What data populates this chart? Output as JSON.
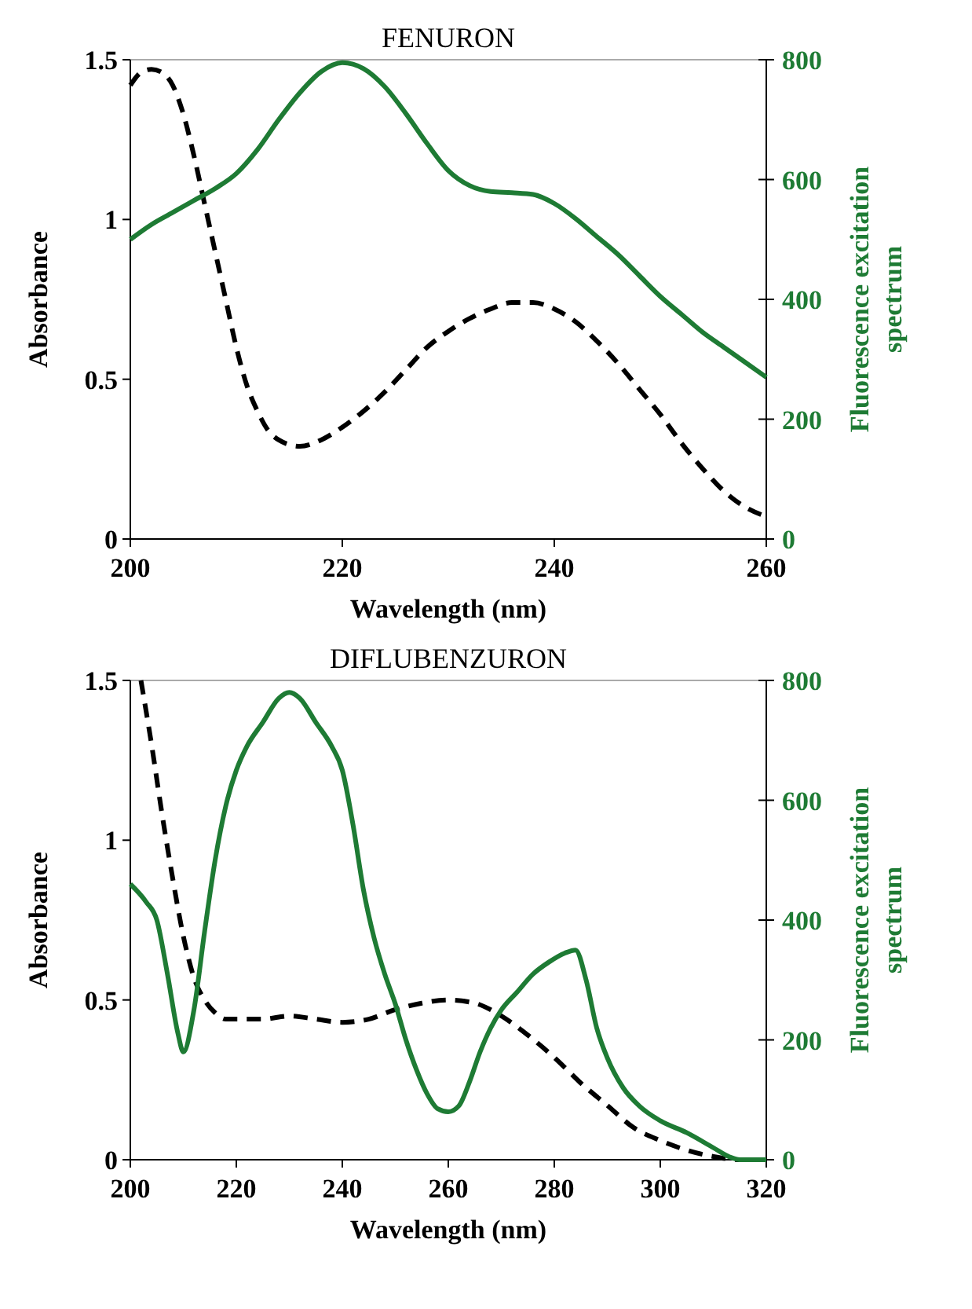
{
  "chart_data": [
    {
      "type": "line",
      "title": "FENURON",
      "xlabel": "Wavelength (nm)",
      "ylabel": "Absorbance",
      "y2label": "Fluorescence excitation\nspectrum",
      "xlim": [
        200,
        260
      ],
      "xticks": [
        200,
        220,
        240,
        260
      ],
      "ylim": [
        0,
        1.5
      ],
      "yticks": [
        0,
        0.5,
        1,
        1.5
      ],
      "y2lim": [
        0,
        800
      ],
      "y2ticks": [
        0,
        200,
        400,
        600,
        800
      ],
      "series": [
        {
          "color": "#000000",
          "line_style": "dashed",
          "x": [
            200,
            201,
            202,
            203,
            204,
            205,
            206,
            207,
            208,
            209,
            210,
            211,
            212,
            213,
            214,
            216,
            218,
            220,
            222,
            224,
            226,
            228,
            230,
            232,
            234,
            236,
            238,
            240,
            242,
            244,
            246,
            248,
            250,
            252,
            254,
            256,
            258,
            260
          ],
          "values": [
            1.42,
            1.46,
            1.47,
            1.46,
            1.42,
            1.33,
            1.2,
            1.05,
            0.9,
            0.75,
            0.6,
            0.48,
            0.4,
            0.34,
            0.31,
            0.29,
            0.31,
            0.35,
            0.4,
            0.46,
            0.53,
            0.6,
            0.65,
            0.69,
            0.72,
            0.74,
            0.74,
            0.72,
            0.68,
            0.62,
            0.55,
            0.47,
            0.39,
            0.3,
            0.22,
            0.15,
            0.1,
            0.07
          ]
        },
        {
          "color": "#1e7b34",
          "line_style": "solid",
          "axis": "y2",
          "x": [
            200,
            202,
            204,
            206,
            208,
            210,
            212,
            214,
            216,
            218,
            220,
            222,
            224,
            226,
            228,
            230,
            232,
            234,
            236,
            238,
            240,
            242,
            244,
            246,
            248,
            250,
            252,
            254,
            256,
            258,
            260
          ],
          "values": [
            500,
            525,
            545,
            565,
            585,
            610,
            650,
            700,
            745,
            780,
            795,
            785,
            755,
            710,
            660,
            615,
            590,
            580,
            578,
            575,
            560,
            535,
            505,
            475,
            440,
            405,
            375,
            345,
            320,
            295,
            270
          ]
        }
      ]
    },
    {
      "type": "line",
      "title": "DIFLUBENZURON",
      "xlabel": "Wavelength (nm)",
      "ylabel": "Absorbance",
      "y2label": "Fluorescence excitation\nspectrum",
      "xlim": [
        200,
        320
      ],
      "xticks": [
        200,
        220,
        240,
        260,
        280,
        300,
        320
      ],
      "ylim": [
        0,
        1.5
      ],
      "yticks": [
        0,
        0.5,
        1,
        1.5
      ],
      "y2lim": [
        0,
        800
      ],
      "y2ticks": [
        0,
        200,
        400,
        600,
        800
      ],
      "series": [
        {
          "color": "#000000",
          "line_style": "dashed",
          "x": [
            202,
            204,
            206,
            208,
            210,
            212,
            214,
            216,
            218,
            220,
            225,
            230,
            235,
            240,
            245,
            250,
            255,
            260,
            265,
            270,
            275,
            280,
            285,
            290,
            295,
            300,
            305,
            310,
            315,
            320
          ],
          "values": [
            1.5,
            1.3,
            1.08,
            0.88,
            0.7,
            0.57,
            0.5,
            0.46,
            0.44,
            0.44,
            0.44,
            0.45,
            0.44,
            0.43,
            0.44,
            0.47,
            0.49,
            0.5,
            0.49,
            0.45,
            0.39,
            0.32,
            0.24,
            0.17,
            0.1,
            0.06,
            0.03,
            0.01,
            0,
            0
          ]
        },
        {
          "color": "#1e7b34",
          "line_style": "solid",
          "axis": "y2",
          "x": [
            200,
            203,
            205,
            207,
            209,
            210,
            212,
            214,
            216,
            218,
            220,
            222,
            225,
            228,
            230,
            232,
            235,
            238,
            240,
            242,
            244,
            246,
            248,
            250,
            252,
            254,
            256,
            258,
            260,
            262,
            264,
            266,
            268,
            270,
            273,
            276,
            279,
            282,
            284,
            286,
            288,
            290,
            293,
            296,
            300,
            305,
            310,
            313,
            315,
            320
          ],
          "values": [
            460,
            430,
            400,
            310,
            210,
            180,
            250,
            380,
            500,
            590,
            650,
            690,
            730,
            770,
            780,
            770,
            730,
            690,
            650,
            560,
            450,
            370,
            310,
            260,
            200,
            150,
            110,
            85,
            80,
            90,
            130,
            180,
            220,
            250,
            280,
            310,
            330,
            345,
            350,
            300,
            220,
            170,
            120,
            90,
            65,
            45,
            20,
            5,
            0,
            0
          ]
        }
      ]
    }
  ]
}
